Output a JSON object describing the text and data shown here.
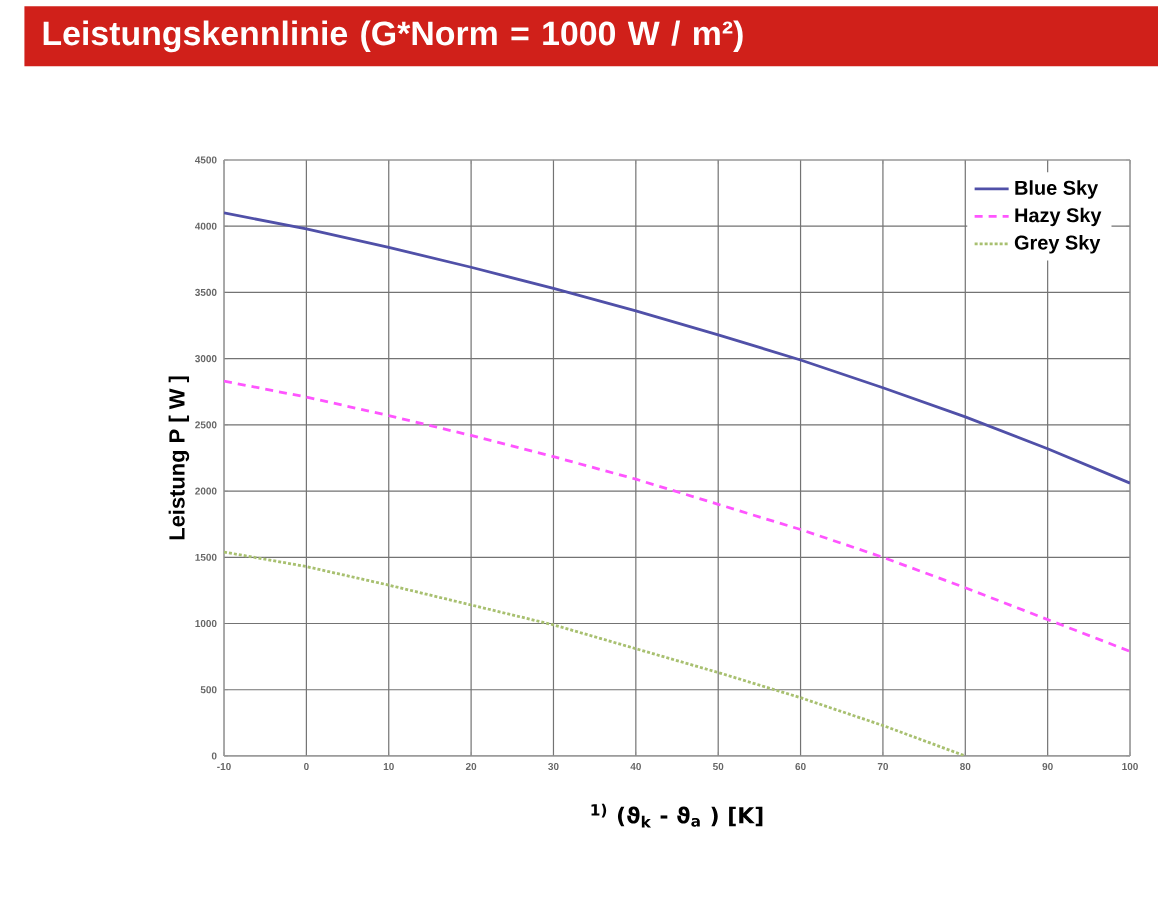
{
  "chart_data": {
    "type": "line",
    "title": "Leistungskennlinie (G*Norm = 1000 W / m²)",
    "xlabel": "$^{1)}$ (ϑ$_{k}$ - ϑ$_{a}$ ) [K]",
    "ylabel": "Leistung P [ W ]",
    "xlim": [
      -10,
      100
    ],
    "xticks": [
      -10,
      0,
      10,
      20,
      30,
      40,
      50,
      60,
      70,
      80,
      90,
      100
    ],
    "ylim": [
      0,
      4500
    ],
    "yticks": [
      0,
      500,
      1000,
      1500,
      2000,
      2500,
      3000,
      3500,
      4000,
      4500
    ],
    "grid": true,
    "legend": "top right",
    "x": [
      -10,
      0,
      10,
      20,
      30,
      40,
      50,
      60,
      70,
      80,
      90,
      100
    ],
    "series": [
      {
        "name": "Blue Sky",
        "color": "#5050a8",
        "line_style": "solid",
        "values": [
          4100,
          3980,
          3840,
          3690,
          3530,
          3360,
          3180,
          2990,
          2780,
          2560,
          2320,
          2060
        ]
      },
      {
        "name": "Hazy Sky",
        "color": "#ff55ff",
        "line_style": "dashed",
        "values": [
          2830,
          2710,
          2570,
          2420,
          2260,
          2090,
          1900,
          1710,
          1500,
          1270,
          1030,
          790
        ]
      },
      {
        "name": "Grey Sky",
        "color": "#a8c070",
        "line_style": "dotted",
        "values": [
          1540,
          1430,
          1290,
          1140,
          990,
          810,
          630,
          440,
          230,
          0,
          null,
          null
        ]
      }
    ]
  }
}
